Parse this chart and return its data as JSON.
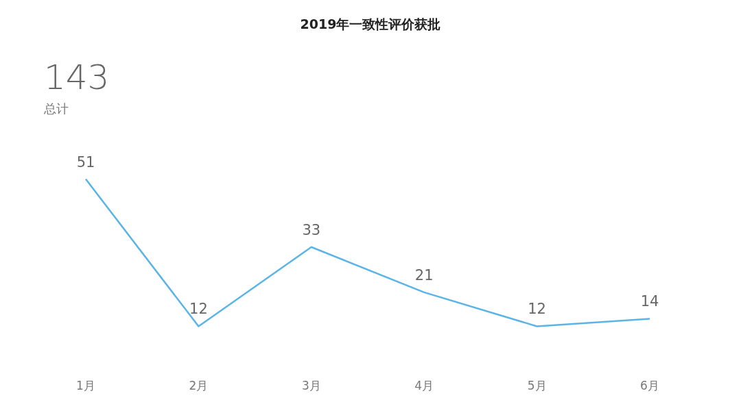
{
  "chart_data": {
    "type": "line",
    "title": "2019年一致性评价获批",
    "categories": [
      "1月",
      "2月",
      "3月",
      "4月",
      "5月",
      "6月"
    ],
    "series": [
      {
        "color": "#5ab4e5",
        "values": [
          51,
          12,
          33,
          21,
          12,
          14
        ]
      }
    ],
    "data_labels": true,
    "marker": "none",
    "tick_labels": "x",
    "annotations": [
      "143",
      "总计"
    ]
  }
}
